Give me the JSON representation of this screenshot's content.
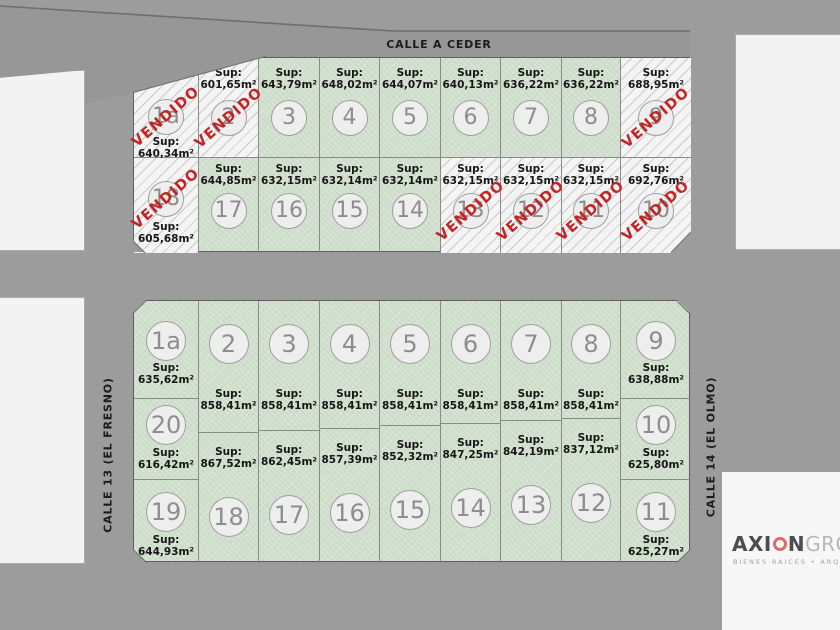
{
  "streets": {
    "top": "CALLE A CEDER",
    "left": "CALLE 13 (EL FRESNO)",
    "right": "CALLE 14 (EL OLMO)"
  },
  "labels": {
    "sup": "Sup:",
    "sold": "VENDIDO"
  },
  "colors": {
    "available_lot": "#d2e1cf",
    "sold_lot_hatch": "#f4f4f4",
    "sold_stamp": "#c32424",
    "street": "#979797",
    "logo_accent": "#e06a6a"
  },
  "blocks": {
    "top": {
      "lots": [
        {
          "number": "1a",
          "area": "640,34m²",
          "sold": true,
          "col": 0,
          "row": 1,
          "sup": "below"
        },
        {
          "number": "2",
          "area": "601,65m²",
          "sold": true,
          "col": 1,
          "row": 1,
          "sup": "above"
        },
        {
          "number": "3",
          "area": "643,79m²",
          "sold": false,
          "col": 2,
          "row": 1,
          "sup": "above"
        },
        {
          "number": "4",
          "area": "648,02m²",
          "sold": false,
          "col": 3,
          "row": 1,
          "sup": "above"
        },
        {
          "number": "5",
          "area": "644,07m²",
          "sold": false,
          "col": 4,
          "row": 1,
          "sup": "above"
        },
        {
          "number": "6",
          "area": "640,13m²",
          "sold": false,
          "col": 5,
          "row": 1,
          "sup": "above"
        },
        {
          "number": "7",
          "area": "636,22m²",
          "sold": false,
          "col": 6,
          "row": 1,
          "sup": "above"
        },
        {
          "number": "8",
          "area": "636,22m²",
          "sold": false,
          "col": 7,
          "row": 1,
          "sup": "above"
        },
        {
          "number": "9",
          "area": "688,95m²",
          "sold": true,
          "col": 8,
          "row": 1,
          "sup": "above"
        },
        {
          "number": "18",
          "area": "605,68m²",
          "sold": true,
          "col": 0,
          "row": 2,
          "sup": "below"
        },
        {
          "number": "17",
          "area": "644,85m²",
          "sold": false,
          "col": 1,
          "row": 2,
          "sup": "above"
        },
        {
          "number": "16",
          "area": "632,15m²",
          "sold": false,
          "col": 2,
          "row": 2,
          "sup": "above"
        },
        {
          "number": "15",
          "area": "632,14m²",
          "sold": false,
          "col": 3,
          "row": 2,
          "sup": "above"
        },
        {
          "number": "14",
          "area": "632,14m²",
          "sold": false,
          "col": 4,
          "row": 2,
          "sup": "above"
        },
        {
          "number": "13",
          "area": "632,15m²",
          "sold": true,
          "col": 5,
          "row": 2,
          "sup": "above"
        },
        {
          "number": "12",
          "area": "632,15m²",
          "sold": true,
          "col": 6,
          "row": 2,
          "sup": "above"
        },
        {
          "number": "11",
          "area": "632,15m²",
          "sold": true,
          "col": 7,
          "row": 2,
          "sup": "above"
        },
        {
          "number": "10",
          "area": "692,76m²",
          "sold": true,
          "col": 8,
          "row": 2,
          "sup": "above"
        }
      ]
    },
    "bottom": {
      "lots": [
        {
          "number": "1a",
          "area": "635,62m²",
          "sold": false,
          "col": 0,
          "row": 1,
          "sup": "below"
        },
        {
          "number": "2",
          "area": "858,41m²",
          "sold": false,
          "col": 1,
          "row": 1,
          "sup": "below"
        },
        {
          "number": "3",
          "area": "858,41m²",
          "sold": false,
          "col": 2,
          "row": 1,
          "sup": "below"
        },
        {
          "number": "4",
          "area": "858,41m²",
          "sold": false,
          "col": 3,
          "row": 1,
          "sup": "below"
        },
        {
          "number": "5",
          "area": "858,41m²",
          "sold": false,
          "col": 4,
          "row": 1,
          "sup": "below"
        },
        {
          "number": "6",
          "area": "858,41m²",
          "sold": false,
          "col": 5,
          "row": 1,
          "sup": "below"
        },
        {
          "number": "7",
          "area": "858,41m²",
          "sold": false,
          "col": 6,
          "row": 1,
          "sup": "below"
        },
        {
          "number": "8",
          "area": "858,41m²",
          "sold": false,
          "col": 7,
          "row": 1,
          "sup": "below"
        },
        {
          "number": "9",
          "area": "638,88m²",
          "sold": false,
          "col": 8,
          "row": 1,
          "sup": "below"
        },
        {
          "number": "20",
          "area": "616,42m²",
          "sold": false,
          "col": 0,
          "row": 2,
          "sup": "below"
        },
        {
          "number": "10",
          "area": "625,80m²",
          "sold": false,
          "col": 8,
          "row": 2,
          "sup": "below"
        },
        {
          "number": "19",
          "area": "644,93m²",
          "sold": false,
          "col": 0,
          "row": 3,
          "sup": "below"
        },
        {
          "number": "18",
          "area": "867,52m²",
          "sold": false,
          "col": 1,
          "row": 3,
          "sup": "above"
        },
        {
          "number": "17",
          "area": "862,45m²",
          "sold": false,
          "col": 2,
          "row": 3,
          "sup": "above"
        },
        {
          "number": "16",
          "area": "857,39m²",
          "sold": false,
          "col": 3,
          "row": 3,
          "sup": "above"
        },
        {
          "number": "15",
          "area": "852,32m²",
          "sold": false,
          "col": 4,
          "row": 3,
          "sup": "above"
        },
        {
          "number": "14",
          "area": "847,25m²",
          "sold": false,
          "col": 5,
          "row": 3,
          "sup": "above"
        },
        {
          "number": "13",
          "area": "842,19m²",
          "sold": false,
          "col": 6,
          "row": 3,
          "sup": "above"
        },
        {
          "number": "12",
          "area": "837,12m²",
          "sold": false,
          "col": 7,
          "row": 3,
          "sup": "above"
        },
        {
          "number": "11",
          "area": "625,27m²",
          "sold": false,
          "col": 8,
          "row": 3,
          "sup": "below"
        }
      ]
    }
  },
  "logo": {
    "name_bold": "AXION",
    "name_light": "GROUP",
    "tagline": "BIENES RAICES • ARQUITE"
  }
}
